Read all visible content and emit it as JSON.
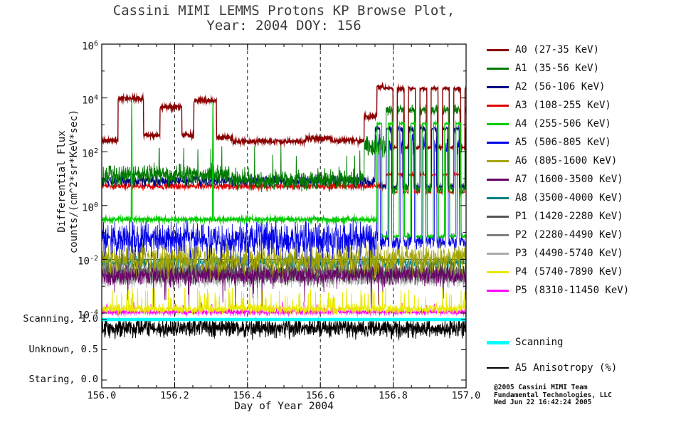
{
  "title": {
    "line1": "Cassini MIMI LEMMS Protons KP Browse Plot,",
    "line2": "Year: 2004 DOY: 156"
  },
  "axes": {
    "x": {
      "label": "Day of Year 2004",
      "tick_labels": [
        "156.0",
        "156.2",
        "156.4",
        "156.6",
        "156.8",
        "157.0"
      ],
      "tick_values": [
        156.0,
        156.2,
        156.4,
        156.6,
        156.8,
        157.0
      ]
    },
    "y": {
      "label_line1": "Differential Flux",
      "label_line2": "counts/(cm^2*sr*KeV*sec)",
      "tick_labels": [
        "10^6",
        "10^4",
        "10^2",
        "10^0",
        "10^-2",
        "10^-4"
      ],
      "tick_exponents": [
        6,
        4,
        2,
        0,
        -2,
        -4
      ]
    },
    "mode": {
      "tick_labels": [
        "Scanning, 1.0",
        "Unknown, 0.5",
        "Staring, 0.0"
      ],
      "tick_values": [
        1.0,
        0.5,
        0.0
      ]
    }
  },
  "credit": [
    "@2005 Cassini MIMI Team",
    "Fundamental Technologies, LLC",
    "Wed Jun 22 16:42:24 2005"
  ],
  "chart_data": {
    "type": "line",
    "title": "Cassini MIMI LEMMS Protons KP Browse Plot, Year: 2004 DOY: 156",
    "xlabel": "Day of Year 2004",
    "ylabel": "Differential Flux counts/(cm^2*sr*KeV*sec)",
    "x_range": [
      156.0,
      157.0
    ],
    "y_scale": "log10",
    "y_range_log10": [
      -4,
      6
    ],
    "x_gridlines": [
      156.2,
      156.4,
      156.6,
      156.8
    ],
    "reference_line_log10": -2,
    "legend_position": "right",
    "series": [
      {
        "name": "A0",
        "label": "A0 (27-35 KeV)",
        "color": "#8B0000",
        "lw": 1.4,
        "noise": 0.05,
        "segments": [
          [
            156.0,
            156.045,
            2.42
          ],
          [
            156.045,
            156.115,
            3.98
          ],
          [
            156.115,
            156.16,
            2.62
          ],
          [
            156.16,
            156.22,
            3.66
          ],
          [
            156.22,
            156.253,
            2.62
          ],
          [
            156.253,
            156.315,
            3.9
          ],
          [
            156.315,
            156.36,
            2.52
          ],
          [
            156.36,
            156.56,
            2.38
          ],
          [
            156.56,
            156.63,
            2.5
          ],
          [
            156.63,
            156.72,
            2.42
          ],
          [
            156.72,
            156.755,
            3.3
          ],
          [
            156.755,
            156.78,
            4.4
          ]
        ],
        "osc": {
          "x0": 156.78,
          "x1": 157.0,
          "high": 4.35,
          "low": 2.15,
          "period": 0.031,
          "duty": 0.62
        }
      },
      {
        "name": "A1",
        "label": "A1 (35-56 KeV)",
        "color": "#007A00",
        "lw": 1.0,
        "noise": 0.18,
        "segments": [
          [
            156.0,
            156.35,
            1.12
          ],
          [
            156.35,
            156.72,
            0.95
          ],
          [
            156.72,
            156.78,
            2.2
          ]
        ],
        "spikes": {
          "rate": 0.015,
          "min": 1.4,
          "max": 2.45
        },
        "events": [
          {
            "x": 156.082,
            "level": 3.05,
            "width": 2
          },
          {
            "x": 156.305,
            "level": 3.3,
            "width": 2
          }
        ],
        "osc": {
          "x0": 156.78,
          "x1": 157.0,
          "high": 3.55,
          "low": 0.6,
          "period": 0.031,
          "duty": 0.55
        }
      },
      {
        "name": "A2",
        "label": "A2 (56-106 KeV)",
        "color": "#000085",
        "lw": 1.0,
        "noise": 0.09,
        "segments": [
          [
            156.0,
            156.75,
            0.92
          ]
        ],
        "osc": {
          "x0": 156.75,
          "x1": 157.0,
          "high": 2.85,
          "low": 0.7,
          "period": 0.031,
          "duty": 0.45
        }
      },
      {
        "name": "A3",
        "label": "A3 (108-255 KeV)",
        "color": "#E10000",
        "lw": 1.0,
        "noise": 0.05,
        "segments": [
          [
            156.0,
            156.78,
            0.72
          ]
        ],
        "osc": {
          "x0": 156.78,
          "x1": 157.0,
          "high": 1.15,
          "low": 0.5,
          "period": 0.031,
          "duty": 0.5
        }
      },
      {
        "name": "A4",
        "label": "A4 (255-506 KeV)",
        "color": "#00CC00",
        "lw": 1.3,
        "noise": 0.04,
        "segments": [
          [
            156.0,
            156.755,
            -0.52
          ]
        ],
        "events": [
          {
            "x": 156.082,
            "level": 3.9,
            "width": 1
          },
          {
            "x": 156.305,
            "level": 3.85,
            "width": 1
          }
        ],
        "osc": {
          "x0": 156.755,
          "x1": 157.0,
          "high": 3.05,
          "low": -1.15,
          "period": 0.031,
          "duty": 0.45
        }
      },
      {
        "name": "A5",
        "label": "A5 (506-805 KeV)",
        "color": "#0000E6",
        "lw": 0.8,
        "noise": 0.32,
        "segments": [
          [
            156.0,
            157.0,
            -1.25
          ]
        ],
        "spikes": {
          "rate": 0.03,
          "min": -2.6,
          "max": -0.45
        },
        "osc": {
          "x0": 156.758,
          "x1": 157.0,
          "high": 2.3,
          "low": -1.35,
          "period": 0.031,
          "duty": 0.22
        }
      },
      {
        "name": "A6",
        "label": "A6 (805-1600 KeV)",
        "color": "#A3A300",
        "lw": 0.8,
        "noise": 0.27,
        "segments": [
          [
            156.0,
            157.0,
            -2.0
          ]
        ],
        "spikes": {
          "rate": 0.02,
          "min": -3.1,
          "max": -1.5
        }
      },
      {
        "name": "A7",
        "label": "A7 (1600-3500 KeV)",
        "color": "#690069",
        "lw": 0.8,
        "noise": 0.16,
        "segments": [
          [
            156.0,
            157.0,
            -2.6
          ]
        ],
        "spikes": {
          "rate": 0.05,
          "min": -3.9,
          "max": -2.1
        }
      },
      {
        "name": "A8",
        "label": "A8 (3500-4000 KeV)",
        "color": "#008080",
        "lw": 0.8,
        "noise": 0.12,
        "segments": [
          [
            156.0,
            157.0,
            -2.12
          ]
        ]
      },
      {
        "name": "P1",
        "label": "P1 (1420-2280 KeV)",
        "color": "#565656",
        "lw": 0.8,
        "noise": 0.18,
        "segments": [
          [
            156.0,
            157.0,
            -2.45
          ]
        ]
      },
      {
        "name": "P2",
        "label": "P2 (2280-4490 KeV)",
        "color": "#7F7F7F",
        "lw": 0.8,
        "noise": 0.18,
        "segments": [
          [
            156.0,
            157.0,
            -2.55
          ]
        ]
      },
      {
        "name": "P3",
        "label": "P3 (4490-5740 KeV)",
        "color": "#ACACAC",
        "lw": 0.8,
        "noise": 0.15,
        "segments": [
          [
            156.0,
            157.0,
            -2.72
          ]
        ]
      },
      {
        "name": "P4",
        "label": "P4 (5740-7890 KeV)",
        "color": "#E9E900",
        "lw": 1.0,
        "noise": 0.08,
        "segments": [
          [
            156.0,
            157.0,
            -3.85
          ]
        ],
        "spikes": {
          "rate": 0.07,
          "min": -3.5,
          "max": -3.05
        }
      },
      {
        "name": "P5",
        "label": "P5 (8310-11450 KeV)",
        "color": "#FF00FF",
        "lw": 1.0,
        "noise": 0.04,
        "segments": [
          [
            156.0,
            157.0,
            -3.96
          ]
        ],
        "spikes": {
          "rate": 0.02,
          "min": -3.8,
          "max": -3.55
        }
      }
    ],
    "draw_order": [
      "A8",
      "P3",
      "P2",
      "P1",
      "A7",
      "A6",
      "P5",
      "P4",
      "A5",
      "A3",
      "A2",
      "A1",
      "A0",
      "A4"
    ],
    "scanning": {
      "label": "Scanning",
      "color": "#00FFFF",
      "value": 1.0,
      "thickness": 5
    },
    "anisotropy": {
      "label": "A5 Anisotropy (%)",
      "color": "#000000",
      "center": 0.86,
      "noise": 0.075,
      "range": [
        0.56,
        0.995
      ],
      "thickness": 2
    }
  }
}
